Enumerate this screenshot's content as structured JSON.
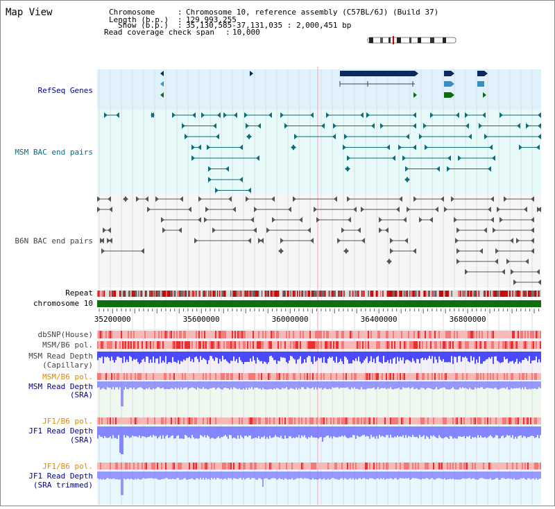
{
  "page": {
    "title": "Map View"
  },
  "info": {
    "lines": [
      {
        "label": "Chromosome",
        "value": "Chromosome 10, reference assembly (C57BL/6J) (Build 37)"
      },
      {
        "label": "Length (b.p.)",
        "value": "129,993,255"
      },
      {
        "label": "Show (b.p.)",
        "value": "35,130,585-37,131,035 : 2,000,451 bp"
      },
      {
        "label": "Read coverage check span",
        "value": "10,000"
      }
    ]
  },
  "tracks": {
    "refseq": "RefSeq Genes",
    "msm_bac": "MSM BAC end pairs",
    "b6n_bac": "B6N BAC end pairs",
    "repeat": "Repeat",
    "chromosome": "chromosome 10",
    "dbsnp": "dbSNP(House)",
    "msm_b6_pol": "MSM/B6 pol.",
    "msm_depth_cap": [
      "MSM Read Depth",
      "(Capillary)"
    ],
    "msm_b6_pol2": "MSM/B6 pol.",
    "msm_depth_sra": [
      "MSM Read Depth",
      "(SRA)"
    ],
    "jf1_b6_pol": "JF1/B6 pol.",
    "jf1_depth_sra": [
      "JF1 Read Depth",
      "(SRA)"
    ],
    "jf1_b6_pol2": "JF1/B6 pol.",
    "jf1_depth_trim": [
      "JF1 Read Depth",
      "(SRA trimmed)"
    ]
  },
  "axis": {
    "start": 35130585,
    "end": 37131035,
    "ticks": [
      {
        "pos": 35200000,
        "label": "35200000"
      },
      {
        "pos": 35600000,
        "label": "35600000"
      },
      {
        "pos": 36000000,
        "label": "36000000"
      },
      {
        "pos": 36400000,
        "label": "36400000"
      },
      {
        "pos": 36800000,
        "label": "36800000"
      }
    ]
  },
  "colors": {
    "refseq_bg": "#dff2fb",
    "msm_bg": "#e7fafa",
    "gene_dark": "#0a2a5e",
    "gene_mid": "#3a8fc4",
    "gene_green": "#0d6b0d",
    "msm_pair": "#0f6a7a",
    "b6n_pair": "#555555",
    "chromosome": "#0e6e0e",
    "depth": "#3b3bff",
    "label_black": "#000000",
    "label_navy": "#00008b",
    "label_teal": "#0f6a7a",
    "label_orange": "#e08a00"
  },
  "icons": {
    "ideogram": "chromosome-ideogram-icon"
  }
}
